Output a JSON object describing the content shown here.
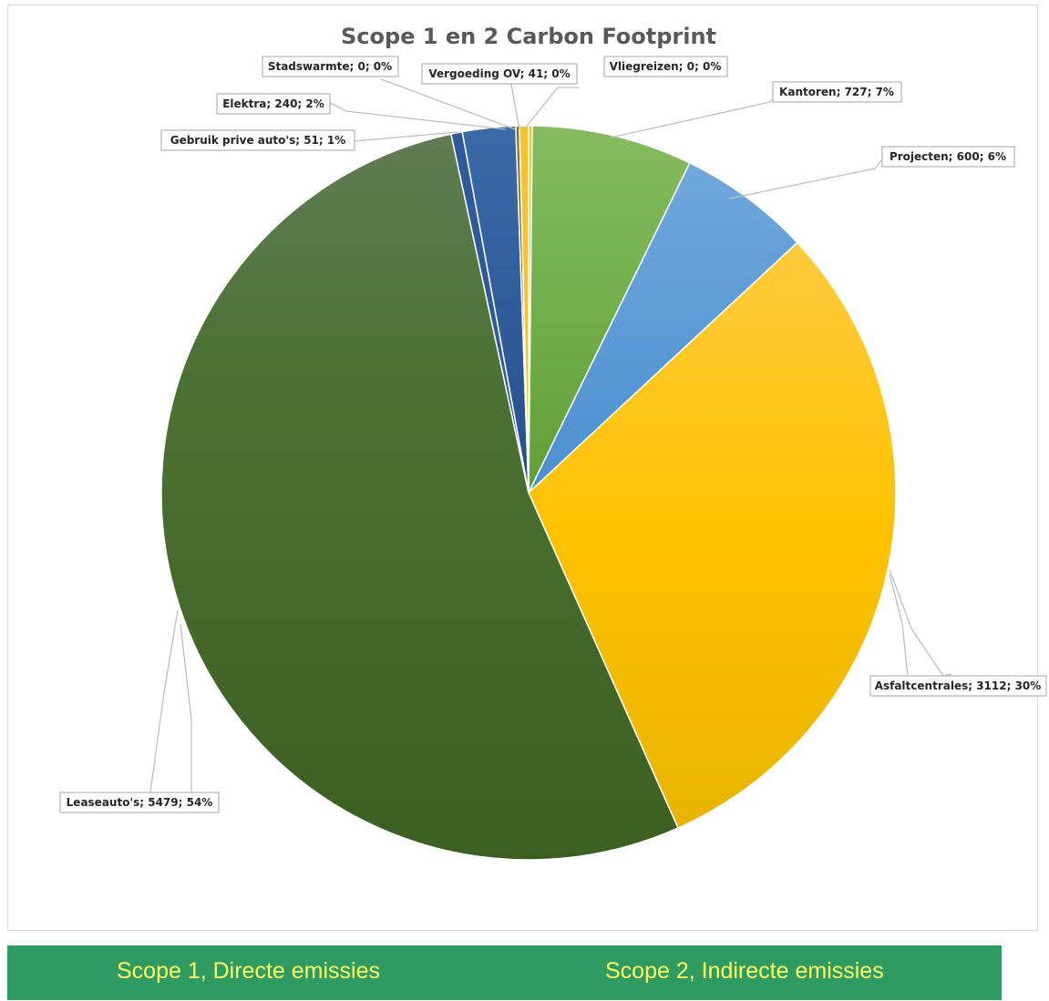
{
  "chart_data": {
    "type": "pie",
    "title": "Scope 1 en 2 Carbon Footprint",
    "slices": [
      {
        "name": "Vliegreizen",
        "value": 0,
        "label": "Vliegreizen; 0; 0%",
        "color": "#f5c230"
      },
      {
        "name": "Kantoren",
        "value": 727,
        "label": "Kantoren; 727; 7%",
        "color": "#70ad47"
      },
      {
        "name": "Projecten",
        "value": 600,
        "label": "Projecten; 600; 6%",
        "color": "#5b9bd5"
      },
      {
        "name": "Asfaltcentrales",
        "value": 3112,
        "label": "Asfaltcentrales; 3112; 30%",
        "color": "#ffc000"
      },
      {
        "name": "Leaseauto's",
        "value": 5479,
        "label": "Leaseauto's; 5479; 54%",
        "color": "#4a7530"
      },
      {
        "name": "Gebruik prive auto's",
        "value": 51,
        "label": "Gebruik prive auto's; 51; 1%",
        "color": "#2e5a99"
      },
      {
        "name": "Elektra",
        "value": 240,
        "label": "Elektra; 240; 2%",
        "color": "#2e5a99"
      },
      {
        "name": "Stadswarmte",
        "value": 0,
        "label": "Stadswarmte; 0; 0%",
        "color": "#8a6d2b"
      },
      {
        "name": "Vergoeding OV",
        "value": 41,
        "label": "Vergoeding OV; 41; 0%",
        "color": "#f5c230"
      }
    ]
  },
  "footer": {
    "scope1": "Scope 1, Directe emissies",
    "scope2": "Scope 2, Indirecte emissies",
    "background": "#2e9c60",
    "text_color": "#ffff66"
  }
}
